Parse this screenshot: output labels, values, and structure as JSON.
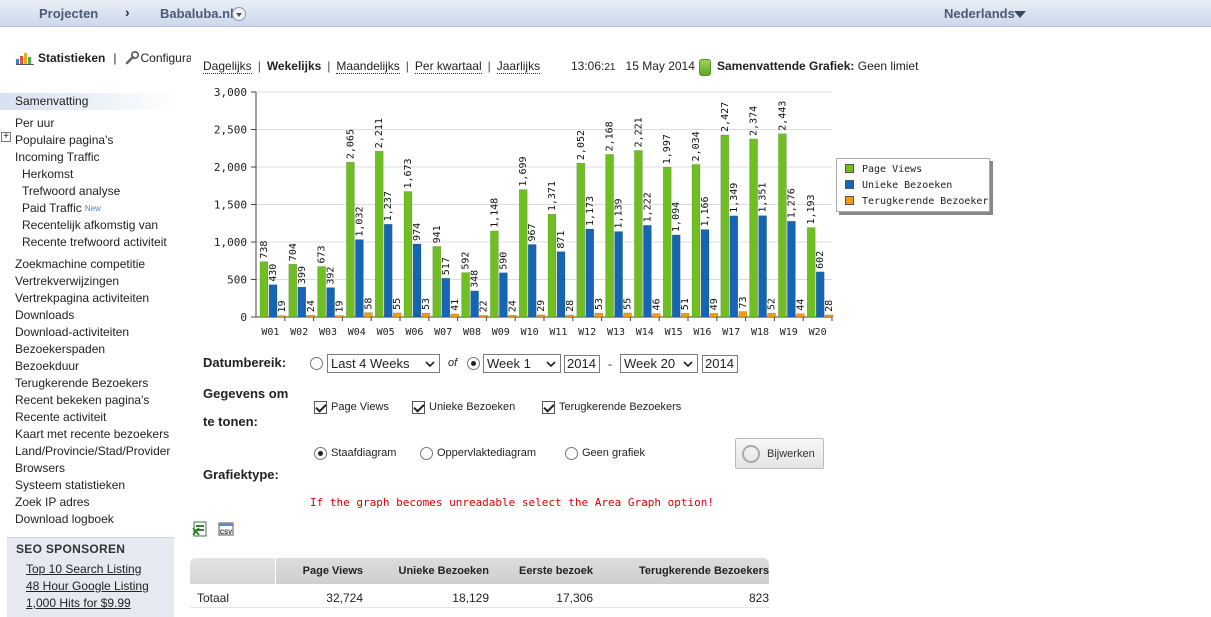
{
  "topbar": {
    "projects": "Projecten",
    "separator": "›",
    "site": "Babaluba.nl",
    "language": "Nederlands"
  },
  "sidebar": {
    "stats_label": "Statistieken",
    "config_label": "Configuratie",
    "items": [
      {
        "label": "Samenvatting",
        "sub": false,
        "active": true
      },
      {
        "label": "Per uur",
        "sub": false
      },
      {
        "label": "Populaire pagina's",
        "sub": false
      },
      {
        "label": "Incoming Traffic",
        "sub": false
      },
      {
        "label": "Herkomst",
        "sub": true
      },
      {
        "label": "Trefwoord analyse",
        "sub": true
      },
      {
        "label": "Paid Traffic",
        "sub": true
      },
      {
        "label": "Recentelijk afkomstig van",
        "sub": true
      },
      {
        "label": "Recente trefwoord activiteit",
        "sub": true
      },
      {
        "label": "Zoekmachine competitie",
        "sub": false
      },
      {
        "label": "Vertrekverwijzingen",
        "sub": false
      },
      {
        "label": "Vertrekpagina activiteiten",
        "sub": false
      },
      {
        "label": "Downloads",
        "sub": false
      },
      {
        "label": "Download-activiteiten",
        "sub": false
      },
      {
        "label": "Bezoekerspaden",
        "sub": false
      },
      {
        "label": "Bezoekduur",
        "sub": false
      },
      {
        "label": "Terugkerende Bezoekers",
        "sub": false
      },
      {
        "label": "Recent bekeken pagina's",
        "sub": false
      },
      {
        "label": "Recente activiteit",
        "sub": false
      },
      {
        "label": "Kaart met recente bezoekers",
        "sub": false
      },
      {
        "label": "Land/Provincie/Stad/Provider",
        "sub": false
      },
      {
        "label": "Browsers",
        "sub": false
      },
      {
        "label": "Systeem statistieken",
        "sub": false
      },
      {
        "label": "Zoek IP adres",
        "sub": false
      },
      {
        "label": "Download logboek",
        "sub": false
      }
    ],
    "new_badge": "New",
    "seo": {
      "title": "SEO SPONSOREN",
      "links": [
        "Top 10 Search Listing",
        "48 Hour Google Listing",
        "1,000 Hits for $9.99"
      ]
    }
  },
  "tabs": [
    "Dagelijks",
    "Wekelijks",
    "Maandelijks",
    "Per kwartaal",
    "Jaarlijks"
  ],
  "active_tab": "Wekelijks",
  "clock": {
    "time": "13:06:",
    "seconds": "21",
    "date": "15 May 2014"
  },
  "summary": {
    "label": "Samenvattende Grafiek:",
    "value": "Geen limiet"
  },
  "chart_data": {
    "type": "bar",
    "categories": [
      "W01",
      "W02",
      "W03",
      "W04",
      "W05",
      "W06",
      "W07",
      "W08",
      "W09",
      "W10",
      "W11",
      "W12",
      "W13",
      "W14",
      "W15",
      "W16",
      "W17",
      "W18",
      "W19",
      "W20"
    ],
    "series": [
      {
        "name": "Page Views",
        "color": "#6fbf23",
        "values": [
          738,
          704,
          673,
          2065,
          2211,
          1673,
          941,
          592,
          1148,
          1699,
          1371,
          2052,
          2168,
          2221,
          1997,
          2034,
          2427,
          2374,
          2443,
          1193
        ]
      },
      {
        "name": "Unieke Bezoeken",
        "color": "#1565b5",
        "values": [
          430,
          399,
          392,
          1032,
          1237,
          974,
          517,
          348,
          590,
          967,
          871,
          1173,
          1139,
          1222,
          1094,
          1166,
          1349,
          1351,
          1276,
          602
        ]
      },
      {
        "name": "Terugkerende Bezoekers",
        "color": "#f09a1a",
        "values": [
          19,
          24,
          19,
          58,
          55,
          53,
          41,
          22,
          24,
          29,
          28,
          53,
          55,
          46,
          51,
          49,
          73,
          52,
          44,
          28
        ]
      }
    ],
    "y_ticks": [
      "0",
      "500",
      "1,000",
      "1,500",
      "2,000",
      "2,500",
      "3,000"
    ],
    "ylim": [
      0,
      3000
    ],
    "grid": true,
    "legend": "right"
  },
  "form": {
    "date_range_label": "Datumbereik:",
    "range_option": "Last 4 Weeks",
    "of": "of",
    "from_week": "Week 1",
    "from_year": "2014",
    "dash": "-",
    "to_week": "Week 20",
    "to_year": "2014",
    "data_label_1": "Gegevens om",
    "data_label_2": "te tonen:",
    "checks": [
      "Page Views",
      "Unieke Bezoeken",
      "Terugkerende Bezoekers"
    ],
    "chart_type_label": "Grafiektype:",
    "chart_types": [
      "Staafdiagram",
      "Oppervlaktediagram",
      "Geen grafiek"
    ],
    "update_button": "Bijwerken",
    "warning": "If the graph becomes unreadable select the Area Graph option!",
    "csv": "CSV"
  },
  "table": {
    "headers": [
      "Page Views",
      "Unieke Bezoeken",
      "Eerste bezoek",
      "Terugkerende Bezoekers"
    ],
    "rows": [
      {
        "label": "Totaal",
        "values": [
          "32,724",
          "18,129",
          "17,306",
          "823"
        ]
      }
    ]
  }
}
